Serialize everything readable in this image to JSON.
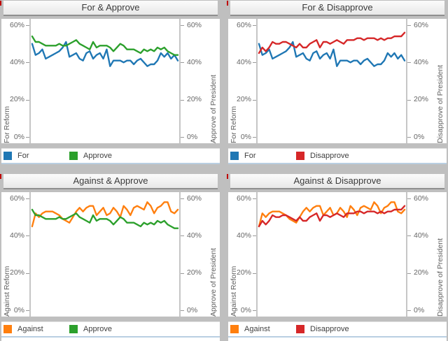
{
  "app": {
    "background_color": "#bfbfbf",
    "panel_color": "#ffffff",
    "title_text_color": "#3a3a3a",
    "axis_text_color": "#666666",
    "legend_divider_color": "#b9cfe2",
    "corner_marker_color": "#c00000"
  },
  "chart_data": {
    "type": "line",
    "layout": "2x2 small multiples, shared dual percent axes, no x tick labels, grid off, legend below each panel",
    "x_count": 44,
    "ylim": [
      0,
      63
    ],
    "yticks": [
      {
        "value": 60,
        "label": "60%"
      },
      {
        "value": 40,
        "label": "40%"
      },
      {
        "value": 20,
        "label": "20%"
      },
      {
        "value": 0,
        "label": "0%"
      }
    ],
    "x_tick_labels": [],
    "series_colors": {
      "For": "#1f77b4",
      "Against": "#ff7f0e",
      "Approve": "#2ca02c",
      "Disapprove": "#d62728"
    },
    "series_values": {
      "For": [
        50,
        44,
        45,
        47,
        42,
        43,
        44,
        45,
        46,
        48,
        51,
        43,
        44,
        45,
        42,
        41,
        45,
        46,
        42,
        44,
        45,
        42,
        47,
        38,
        41,
        41,
        41,
        40,
        41,
        41,
        39,
        41,
        42,
        40,
        38,
        39,
        39,
        41,
        45,
        43,
        45,
        42,
        44,
        41
      ],
      "Approve": [
        54,
        51,
        51,
        50,
        49,
        49,
        49,
        49,
        50,
        49,
        49,
        50,
        51,
        52,
        50,
        49,
        48,
        47,
        51,
        48,
        49,
        49,
        49,
        48,
        46,
        48,
        50,
        49,
        47,
        47,
        47,
        46,
        45,
        47,
        46,
        47,
        46,
        48,
        47,
        48,
        46,
        45,
        44,
        44
      ],
      "Disapprove": [
        45,
        48,
        46,
        48,
        51,
        50,
        50,
        51,
        51,
        50,
        49,
        48,
        50,
        48,
        48,
        50,
        51,
        52,
        48,
        51,
        51,
        50,
        51,
        52,
        51,
        50,
        52,
        52,
        52,
        53,
        53,
        52,
        53,
        53,
        53,
        52,
        53,
        52,
        53,
        53,
        54,
        54,
        54,
        56
      ],
      "Against": [
        45,
        52,
        50,
        52,
        53,
        53,
        53,
        52,
        51,
        49,
        48,
        47,
        50,
        53,
        55,
        53,
        55,
        56,
        56,
        51,
        53,
        55,
        51,
        52,
        55,
        53,
        50,
        56,
        54,
        51,
        55,
        56,
        55,
        54,
        58,
        56,
        52,
        55,
        56,
        58,
        58,
        53,
        52,
        54
      ]
    },
    "panels": [
      {
        "title": "For & Approve",
        "left_label": "For Reform",
        "right_label": "Approve of President",
        "series": [
          "For",
          "Approve"
        ]
      },
      {
        "title": "For & Disapprove",
        "left_label": "For Reform",
        "right_label": "Disapprove of President",
        "series": [
          "For",
          "Disapprove"
        ]
      },
      {
        "title": "Against & Approve",
        "left_label": "Against Reform",
        "right_label": "Approve of President",
        "series": [
          "Against",
          "Approve"
        ]
      },
      {
        "title": "Against & Disapprove",
        "left_label": "Against Reform",
        "right_label": "Disapprove of President",
        "series": [
          "Against",
          "Disapprove"
        ]
      }
    ]
  }
}
